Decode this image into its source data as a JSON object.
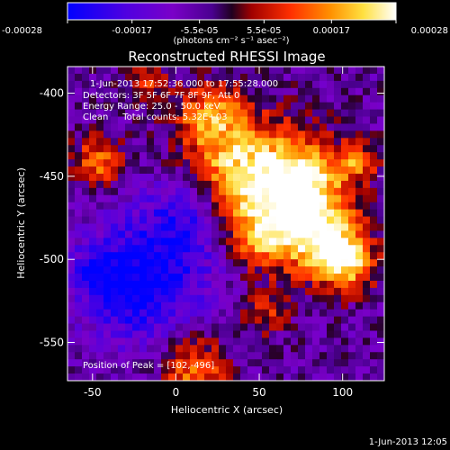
{
  "chart_data": {
    "type": "heatmap",
    "title": "Reconstructed RHESSI Image",
    "xlabel": "Heliocentric X (arcsec)",
    "ylabel": "Heliocentric Y (arcsec)",
    "xlim": [
      -65,
      125
    ],
    "ylim": [
      -573,
      -384
    ],
    "x_ticks": [
      -50,
      0,
      50,
      100
    ],
    "y_ticks": [
      -400,
      -450,
      -500,
      -550
    ],
    "colorbar": {
      "label": "(photons cm⁻² s⁻¹ asec⁻²)",
      "range": [
        -0.00028,
        0.00028
      ],
      "ticks": [
        "-0.00028",
        "-0.00017",
        "-5.5e-05",
        "5.5e-05",
        "0.00017",
        "0.00028"
      ],
      "tick_values": [
        -0.00028,
        -0.00017,
        -5.5e-05,
        5.5e-05,
        0.00017,
        0.00028
      ]
    },
    "annotations": [
      "1-Jun-2013 17:52:36.000 to 17:55:28.000",
      "Detectors: 3F 5F 6F 7F 8F 9F, Att 0",
      "Energy Range: 25.0 - 50.0 keV",
      "Clean     Total counts: 5.32E+03",
      "Position of Peak = [102,-496]"
    ],
    "grid": false,
    "colormap": "blue-purple-red-yellow-white",
    "peak_position": [
      102,
      -496
    ],
    "colors": {
      "background": "#000000",
      "axis": "#ffffff",
      "cmap_stops": [
        "#0000ff",
        "#6a00c8",
        "#5a0096",
        "#3c0050",
        "#d00000",
        "#ff6000",
        "#ffd400",
        "#ffffff"
      ]
    }
  },
  "footer": {
    "timestamp": "1-Jun-2013 12:05"
  }
}
